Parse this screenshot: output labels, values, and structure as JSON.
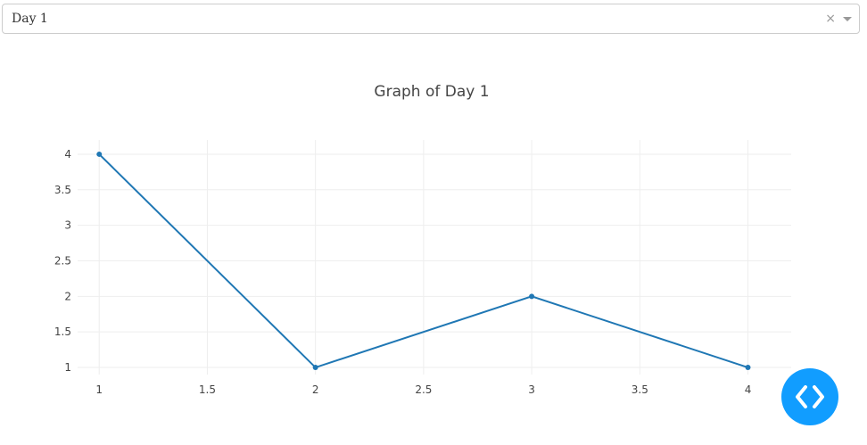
{
  "dropdown": {
    "selected_value": "Day 1",
    "clear_symbol": "×"
  },
  "chart_data": {
    "type": "line",
    "title": "Graph of Day 1",
    "xlabel": "",
    "ylabel": "",
    "x": [
      1,
      2,
      3,
      4
    ],
    "series": [
      {
        "values": [
          4,
          1,
          2,
          1
        ]
      }
    ],
    "xlim": [
      0.9,
      4.2
    ],
    "ylim": [
      0.9,
      4.2
    ],
    "xticks": [
      1,
      1.5,
      2,
      2.5,
      3,
      3.5,
      4
    ],
    "yticks": [
      1,
      1.5,
      2,
      2.5,
      3,
      3.5,
      4
    ],
    "grid": true,
    "line_color": "#1f77b4"
  },
  "fab": {
    "icon": "code-icon",
    "color": "#119dff"
  }
}
